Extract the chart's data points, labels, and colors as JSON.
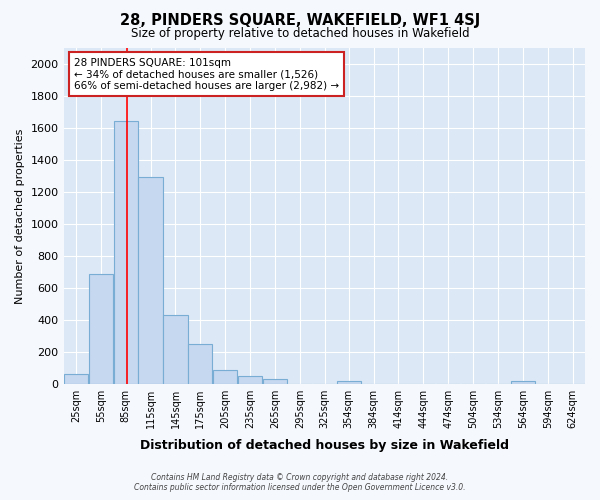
{
  "title": "28, PINDERS SQUARE, WAKEFIELD, WF1 4SJ",
  "subtitle": "Size of property relative to detached houses in Wakefield",
  "xlabel": "Distribution of detached houses by size in Wakefield",
  "ylabel": "Number of detached properties",
  "bar_color": "#c5d8ef",
  "bar_edge_color": "#7aadd4",
  "background_color": "#dce8f5",
  "fig_background_color": "#f5f8fd",
  "grid_color": "#ffffff",
  "red_line_x": 101,
  "annotation_line1": "28 PINDERS SQUARE: 101sqm",
  "annotation_line2": "← 34% of detached houses are smaller (1,526)",
  "annotation_line3": "66% of semi-detached houses are larger (2,982) →",
  "footer_text": "Contains HM Land Registry data © Crown copyright and database right 2024.\nContains public sector information licensed under the Open Government Licence v3.0.",
  "bin_labels": [
    "25sqm",
    "55sqm",
    "85sqm",
    "115sqm",
    "145sqm",
    "175sqm",
    "205sqm",
    "235sqm",
    "265sqm",
    "295sqm",
    "325sqm",
    "354sqm",
    "384sqm",
    "414sqm",
    "444sqm",
    "474sqm",
    "504sqm",
    "534sqm",
    "564sqm",
    "594sqm",
    "624sqm"
  ],
  "bin_lefts": [
    25,
    55,
    85,
    115,
    145,
    175,
    205,
    235,
    265,
    295,
    325,
    354,
    384,
    414,
    444,
    474,
    504,
    534,
    564,
    594,
    624
  ],
  "bin_width": 30,
  "bar_heights": [
    65,
    690,
    1640,
    1290,
    430,
    252,
    90,
    52,
    30,
    0,
    0,
    20,
    0,
    0,
    0,
    0,
    0,
    0,
    20,
    0,
    0
  ],
  "ylim": [
    0,
    2100
  ],
  "xlim": [
    25,
    654
  ],
  "yticks": [
    0,
    200,
    400,
    600,
    800,
    1000,
    1200,
    1400,
    1600,
    1800,
    2000
  ]
}
